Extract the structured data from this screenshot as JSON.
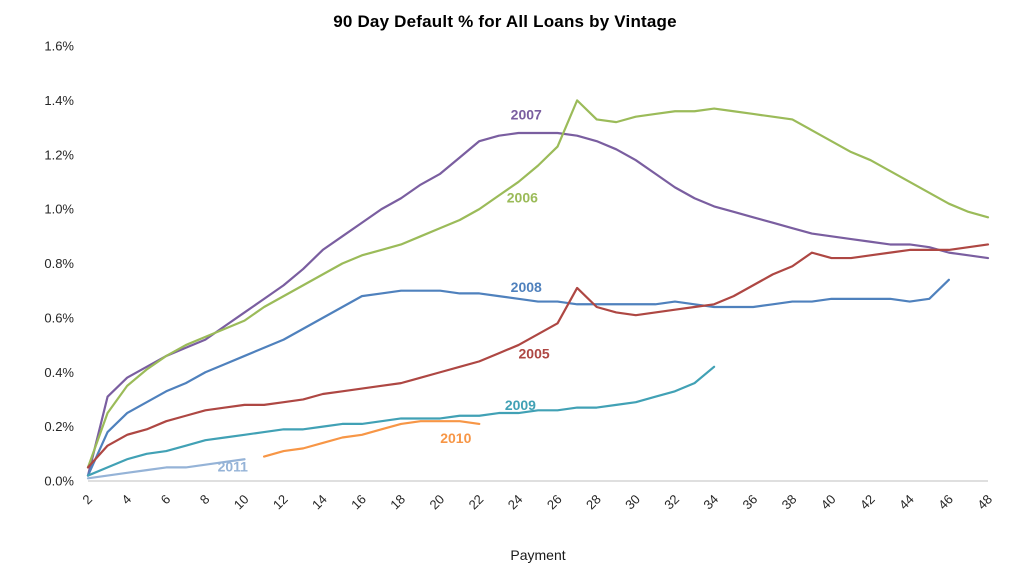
{
  "chart_data": {
    "type": "line",
    "title": "90 Day Default % for All Loans by Vintage",
    "xlabel": "Payment",
    "ylabel": "",
    "xlim": [
      2,
      48
    ],
    "ylim": [
      0,
      1.6
    ],
    "x_ticks": [
      2,
      4,
      6,
      8,
      10,
      12,
      14,
      16,
      18,
      20,
      22,
      24,
      26,
      28,
      30,
      32,
      34,
      36,
      38,
      40,
      42,
      44,
      46,
      48
    ],
    "y_ticks": [
      0,
      0.2,
      0.4,
      0.6,
      0.8,
      1,
      1.2,
      1.4,
      1.6
    ],
    "y_tick_format": "percent_1dp",
    "grid": false,
    "legend": "inline-labels",
    "axis_color": "#bfbfbf",
    "tick_label_color": "#262626",
    "series": [
      {
        "name": "2007",
        "color": "#7A5EA0",
        "x_start": 2,
        "label": {
          "x": 24.4,
          "y": 1.345
        },
        "values": [
          0.02,
          0.31,
          0.38,
          0.42,
          0.46,
          0.49,
          0.52,
          0.57,
          0.62,
          0.67,
          0.72,
          0.78,
          0.85,
          0.9,
          0.95,
          1.0,
          1.04,
          1.09,
          1.13,
          1.19,
          1.25,
          1.27,
          1.28,
          1.28,
          1.28,
          1.27,
          1.25,
          1.22,
          1.18,
          1.13,
          1.08,
          1.04,
          1.01,
          0.99,
          0.97,
          0.95,
          0.93,
          0.91,
          0.9,
          0.89,
          0.88,
          0.87,
          0.87,
          0.86,
          0.84,
          0.83,
          0.82
        ]
      },
      {
        "name": "2006",
        "color": "#9BBB59",
        "x_start": 2,
        "label": {
          "x": 24.2,
          "y": 1.04
        },
        "values": [
          0.05,
          0.25,
          0.35,
          0.41,
          0.46,
          0.5,
          0.53,
          0.56,
          0.59,
          0.64,
          0.68,
          0.72,
          0.76,
          0.8,
          0.83,
          0.85,
          0.87,
          0.9,
          0.93,
          0.96,
          1.0,
          1.05,
          1.1,
          1.16,
          1.23,
          1.4,
          1.33,
          1.32,
          1.34,
          1.35,
          1.36,
          1.36,
          1.37,
          1.36,
          1.35,
          1.34,
          1.33,
          1.29,
          1.25,
          1.21,
          1.18,
          1.14,
          1.1,
          1.06,
          1.02,
          0.99,
          0.97
        ]
      },
      {
        "name": "2008",
        "color": "#4F81BD",
        "x_start": 2,
        "label": {
          "x": 24.4,
          "y": 0.71
        },
        "values": [
          0.02,
          0.18,
          0.25,
          0.29,
          0.33,
          0.36,
          0.4,
          0.43,
          0.46,
          0.49,
          0.52,
          0.56,
          0.6,
          0.64,
          0.68,
          0.69,
          0.7,
          0.7,
          0.7,
          0.69,
          0.69,
          0.68,
          0.67,
          0.66,
          0.66,
          0.65,
          0.65,
          0.65,
          0.65,
          0.65,
          0.66,
          0.65,
          0.64,
          0.64,
          0.64,
          0.65,
          0.66,
          0.66,
          0.67,
          0.67,
          0.67,
          0.67,
          0.66,
          0.67,
          0.74
        ]
      },
      {
        "name": "2005",
        "color": "#AE4743",
        "x_start": 2,
        "label": {
          "x": 24.8,
          "y": 0.465
        },
        "values": [
          0.05,
          0.13,
          0.17,
          0.19,
          0.22,
          0.24,
          0.26,
          0.27,
          0.28,
          0.28,
          0.29,
          0.3,
          0.32,
          0.33,
          0.34,
          0.35,
          0.36,
          0.38,
          0.4,
          0.42,
          0.44,
          0.47,
          0.5,
          0.54,
          0.58,
          0.71,
          0.64,
          0.62,
          0.61,
          0.62,
          0.63,
          0.64,
          0.65,
          0.68,
          0.72,
          0.76,
          0.79,
          0.84,
          0.82,
          0.82,
          0.83,
          0.84,
          0.85,
          0.85,
          0.85,
          0.86,
          0.87
        ]
      },
      {
        "name": "2009",
        "color": "#41A1B5",
        "x_start": 2,
        "label": {
          "x": 24.1,
          "y": 0.275
        },
        "values": [
          0.02,
          0.05,
          0.08,
          0.1,
          0.11,
          0.13,
          0.15,
          0.16,
          0.17,
          0.18,
          0.19,
          0.19,
          0.2,
          0.21,
          0.21,
          0.22,
          0.23,
          0.23,
          0.23,
          0.24,
          0.24,
          0.25,
          0.25,
          0.26,
          0.26,
          0.27,
          0.27,
          0.28,
          0.29,
          0.31,
          0.33,
          0.36,
          0.42
        ]
      },
      {
        "name": "2010",
        "color": "#F79646",
        "x_start": 11,
        "label": {
          "x": 20.8,
          "y": 0.155
        },
        "values": [
          0.09,
          0.11,
          0.12,
          0.14,
          0.16,
          0.17,
          0.19,
          0.21,
          0.22,
          0.22,
          0.22,
          0.21
        ]
      },
      {
        "name": "2011",
        "color": "#95B3D7",
        "x_start": 2,
        "label": {
          "x": 9.4,
          "y": 0.05
        },
        "values": [
          0.01,
          0.02,
          0.03,
          0.04,
          0.05,
          0.05,
          0.06,
          0.07,
          0.08
        ]
      }
    ]
  }
}
